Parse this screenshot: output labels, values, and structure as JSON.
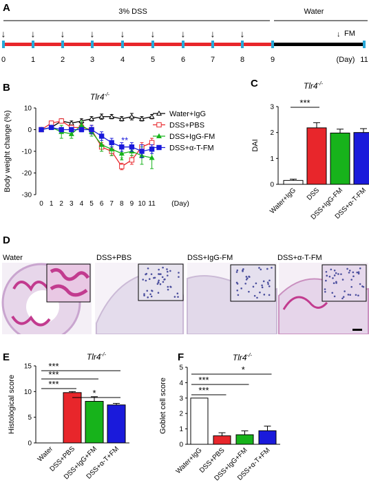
{
  "panels": {
    "a": "A",
    "b": "B",
    "c": "C",
    "d": "D",
    "e": "E",
    "f": "F"
  },
  "timeline": {
    "dss_label": "3% DSS",
    "water_label": "Water",
    "fm_label": "FM",
    "day_ticks": [
      "0",
      "1",
      "2",
      "3",
      "4",
      "5",
      "6",
      "7",
      "8",
      "9",
      "11"
    ],
    "day_unit": "(Day)",
    "colors": {
      "dss_bar": "#e8262b",
      "water_bar": "#000000",
      "tick": "#29a8d8"
    }
  },
  "chart_data": [
    {
      "id": "B",
      "type": "line",
      "title": "Tlr4-/-",
      "xlabel": "(Day)",
      "ylabel": "Body weight change (%)",
      "ylim": [
        -30,
        10
      ],
      "yticks": [
        "10",
        "0",
        "-10",
        "-20",
        "-30"
      ],
      "x": [
        0,
        1,
        2,
        3,
        4,
        5,
        6,
        7,
        8,
        9,
        10,
        11
      ],
      "xticks": [
        "0",
        "1",
        "2",
        "3",
        "4",
        "5",
        "6",
        "7",
        "8",
        "9",
        "10",
        "11"
      ],
      "legend_position": "top-right",
      "series": [
        {
          "name": "Water+IgG",
          "color": "#000000",
          "marker": "open-triangle",
          "values": [
            0,
            1,
            4,
            3,
            4,
            5,
            6,
            6,
            5,
            6,
            5,
            6
          ],
          "err": [
            0.5,
            0.8,
            1,
            1,
            1,
            1,
            1.2,
            1,
            1,
            1.5,
            1,
            1
          ]
        },
        {
          "name": "DSS+PBS",
          "color": "#e8262b",
          "marker": "open-square",
          "values": [
            0,
            3,
            4,
            1,
            1,
            0,
            -8,
            -10,
            -17,
            -14,
            -8,
            -6
          ],
          "err": [
            0.5,
            1,
            1,
            1,
            1.5,
            2,
            2,
            2,
            1.5,
            2,
            2,
            2
          ]
        },
        {
          "name": "DSS+IgG-FM",
          "color": "#17b31b",
          "marker": "filled-triangle",
          "values": [
            0,
            1,
            -1,
            -2,
            2,
            -1,
            -7,
            -9,
            -11,
            -10,
            -12,
            -13
          ],
          "err": [
            0.5,
            1,
            3,
            2,
            2,
            2,
            3,
            3,
            3,
            2,
            4,
            5
          ]
        },
        {
          "name": "DSS+α-T-FM",
          "color": "#1a1adb",
          "marker": "filled-square",
          "values": [
            0,
            1,
            0,
            0,
            0,
            0,
            -3,
            -6,
            -8,
            -8,
            -10,
            -9
          ],
          "err": [
            0.5,
            1,
            1,
            1,
            1,
            2,
            2,
            2,
            2,
            2,
            3,
            2
          ]
        }
      ],
      "annotations": [
        {
          "text": "**",
          "x": 8.3,
          "y": -5,
          "color": "#1a1adb"
        },
        {
          "text": "*",
          "x": 8.0,
          "y": -14,
          "color": "#17b31b"
        }
      ]
    },
    {
      "id": "C",
      "type": "bar",
      "title": "Tlr4-/-",
      "ylabel": "DAI",
      "ylim": [
        0,
        3
      ],
      "yticks": [
        "0",
        "1",
        "2",
        "3"
      ],
      "categories": [
        "Water+IgG",
        "DSS",
        "DSS+IgG-FM",
        "DSS+α-T-FM"
      ],
      "values": [
        0.15,
        2.18,
        1.98,
        2.0
      ],
      "err": [
        0.05,
        0.2,
        0.15,
        0.15
      ],
      "colors": [
        "#ffffff",
        "#e8262b",
        "#17b31b",
        "#1a1adb"
      ],
      "significance": [
        {
          "from": 0,
          "to": 1,
          "text": "***"
        }
      ]
    },
    {
      "id": "E",
      "type": "bar",
      "title": "Tlr4-/-",
      "ylabel": "Histological score",
      "ylim": [
        0,
        15
      ],
      "yticks": [
        "0",
        "5",
        "10",
        "15"
      ],
      "categories": [
        "Water",
        "DSS+PBS",
        "DSS+IgG+FM",
        "DSS+α-T+FM"
      ],
      "values": [
        0,
        9.8,
        8.1,
        7.4
      ],
      "err": [
        0,
        0.2,
        0.9,
        0.3
      ],
      "colors": [
        "#ffffff",
        "#e8262b",
        "#17b31b",
        "#1a1adb"
      ],
      "significance": [
        {
          "from": 0,
          "to": 3,
          "text": "***"
        },
        {
          "from": 0,
          "to": 2,
          "text": "***"
        },
        {
          "from": 0,
          "to": 1,
          "text": "***"
        },
        {
          "from": 1,
          "to": 3,
          "text": "*"
        }
      ]
    },
    {
      "id": "F",
      "type": "bar",
      "title": "Tlr4-/-",
      "ylabel": "Goblet cell score",
      "ylim": [
        0,
        5
      ],
      "yticks": [
        "0",
        "1",
        "2",
        "3",
        "4",
        "5"
      ],
      "categories": [
        "Water+IgG",
        "DSS+PBS",
        "DSS+IgG+FM",
        "DSS+α-T+FM"
      ],
      "values": [
        3,
        0.55,
        0.62,
        0.88
      ],
      "err": [
        0,
        0.2,
        0.25,
        0.3
      ],
      "colors": [
        "#ffffff",
        "#e8262b",
        "#17b31b",
        "#1a1adb"
      ],
      "significance": [
        {
          "from": 0,
          "to": 3,
          "text": "*"
        },
        {
          "from": 0,
          "to": 2,
          "text": "***"
        },
        {
          "from": 0,
          "to": 1,
          "text": "***"
        }
      ]
    }
  ],
  "panel_d": {
    "labels": [
      "Water",
      "DSS+PBS",
      "DSS+IgG-FM",
      "DSS+α-T-FM"
    ],
    "colors": {
      "tissue": "#d9c4e0",
      "stain_dark": "#c23b8f",
      "nuclei": "#4b4f9e"
    }
  }
}
